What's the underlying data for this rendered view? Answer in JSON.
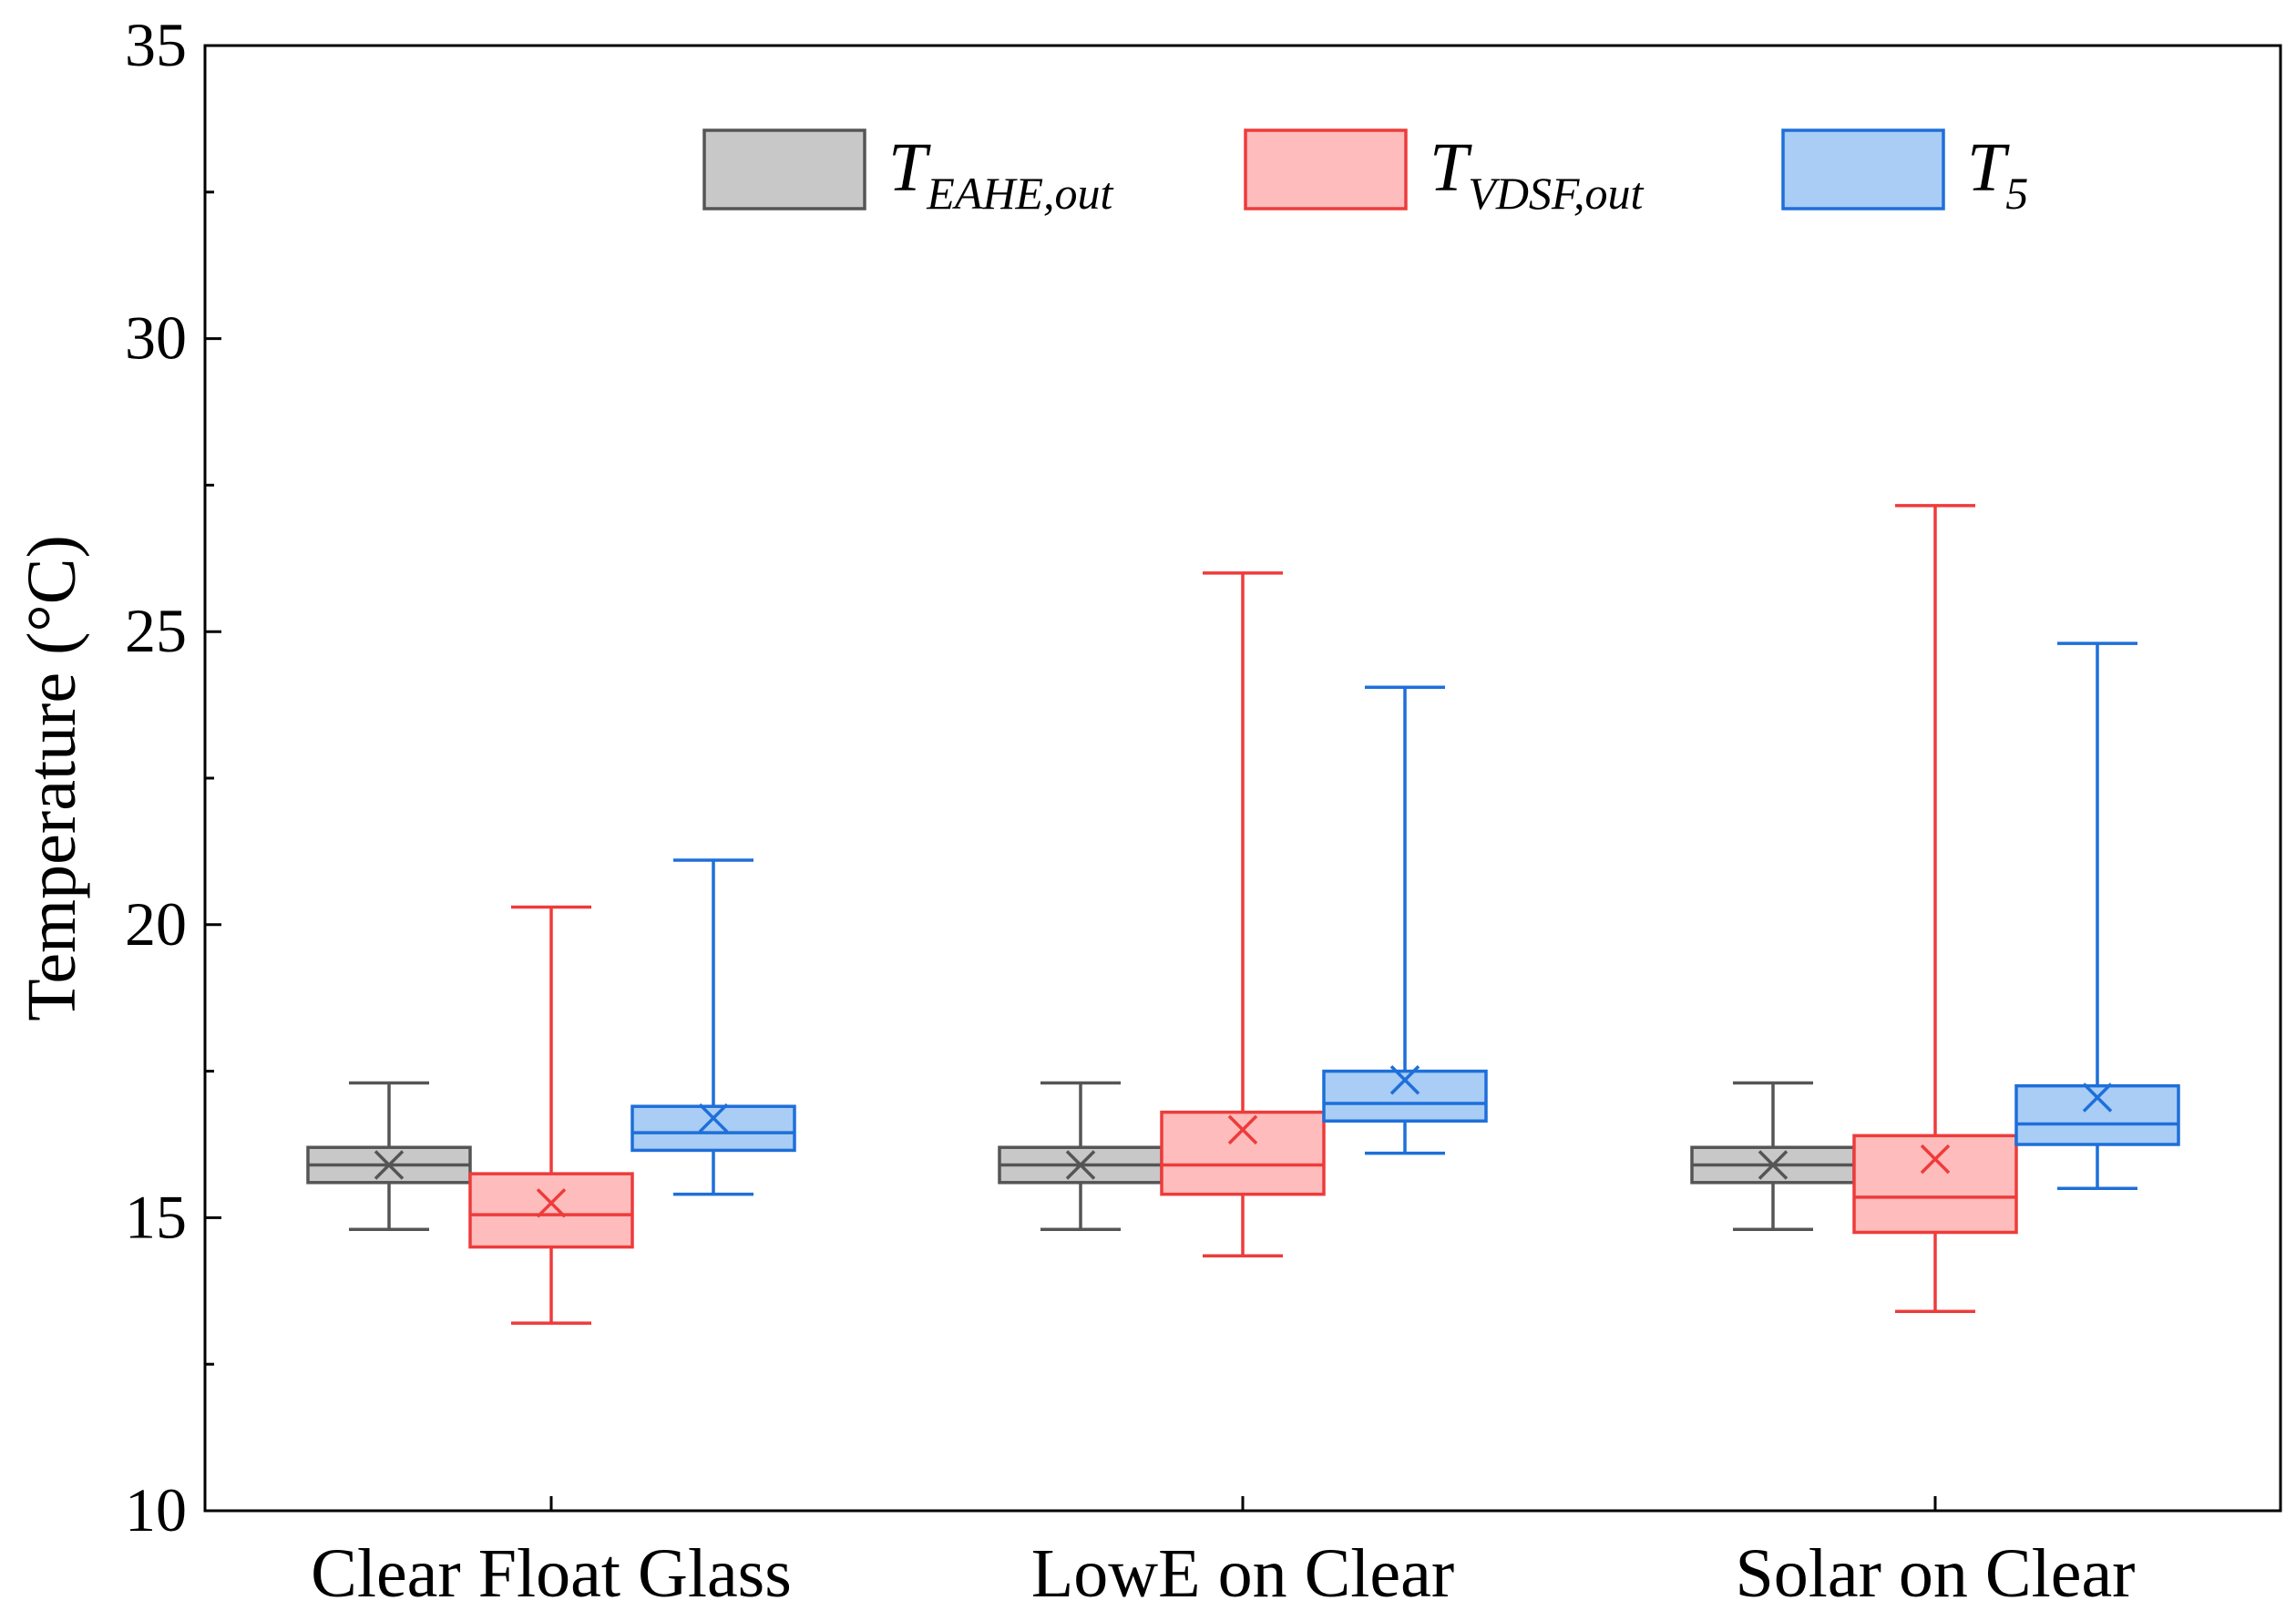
{
  "chart_data": {
    "type": "box",
    "ylabel": "Temperature (°C)",
    "xlabel": "",
    "ylim": [
      10,
      35
    ],
    "yticks": [
      10,
      15,
      20,
      25,
      30,
      35
    ],
    "y_minor_step": 2.5,
    "categories": [
      "Clear Float Glass",
      "LowE on Clear",
      "Solar on Clear"
    ],
    "series": [
      {
        "name": "T_EAHE,out",
        "legend_main": "T",
        "legend_sub": "EAHE,out",
        "stroke": "#555555",
        "fill": "#c8c8c8",
        "boxes": [
          {
            "min": 14.8,
            "q1": 15.6,
            "median": 15.9,
            "q3": 16.2,
            "max": 17.3,
            "mean": 15.9
          },
          {
            "min": 14.8,
            "q1": 15.6,
            "median": 15.9,
            "q3": 16.2,
            "max": 17.3,
            "mean": 15.9
          },
          {
            "min": 14.8,
            "q1": 15.6,
            "median": 15.9,
            "q3": 16.2,
            "max": 17.3,
            "mean": 15.9
          }
        ]
      },
      {
        "name": "T_VDSF,out",
        "legend_main": "T",
        "legend_sub": "VDSF,out",
        "stroke": "#ee3b3b",
        "fill": "#ffbcbc",
        "boxes": [
          {
            "min": 13.2,
            "q1": 14.5,
            "median": 15.05,
            "q3": 15.75,
            "max": 20.3,
            "mean": 15.25
          },
          {
            "min": 14.35,
            "q1": 15.4,
            "median": 15.9,
            "q3": 16.8,
            "max": 26.0,
            "mean": 16.5
          },
          {
            "min": 13.4,
            "q1": 14.75,
            "median": 15.35,
            "q3": 16.4,
            "max": 27.15,
            "mean": 16.0
          }
        ]
      },
      {
        "name": "T_5",
        "legend_main": "T",
        "legend_sub": "5",
        "stroke": "#1e6fd9",
        "fill": "#a9cdf5",
        "boxes": [
          {
            "min": 15.4,
            "q1": 16.15,
            "median": 16.45,
            "q3": 16.9,
            "max": 21.1,
            "mean": 16.7
          },
          {
            "min": 16.1,
            "q1": 16.65,
            "median": 16.95,
            "q3": 17.5,
            "max": 24.05,
            "mean": 17.35
          },
          {
            "min": 15.5,
            "q1": 16.25,
            "median": 16.6,
            "q3": 17.25,
            "max": 24.8,
            "mean": 17.05
          }
        ]
      }
    ]
  }
}
